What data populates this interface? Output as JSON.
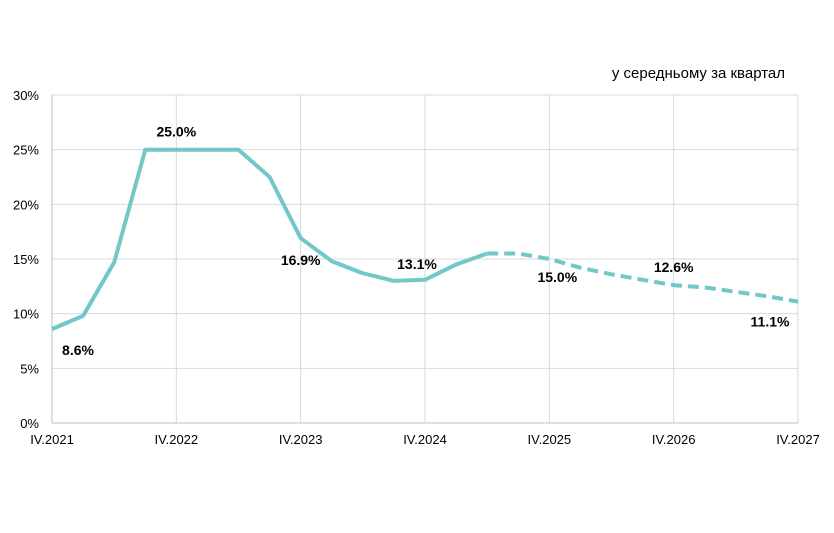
{
  "chart_data": {
    "type": "line",
    "unit_note": "у середньому за квартал",
    "x_tick_labels": [
      "IV.2021",
      "IV.2022",
      "IV.2023",
      "IV.2024",
      "IV.2025",
      "IV.2026",
      "IV.2027"
    ],
    "y_tick_labels": [
      "0%",
      "5%",
      "10%",
      "15%",
      "20%",
      "25%",
      "30%"
    ],
    "ylim": [
      0,
      30
    ],
    "grid": true,
    "color": "#72c7c7",
    "series": [
      {
        "style": "solid",
        "points": [
          {
            "q": "IV.2021",
            "v": 8.6
          },
          {
            "q": "I.2022",
            "v": 9.8
          },
          {
            "q": "II.2022",
            "v": 14.7
          },
          {
            "q": "III.2022",
            "v": 25.0
          },
          {
            "q": "IV.2022",
            "v": 25.0
          },
          {
            "q": "I.2023",
            "v": 25.0
          },
          {
            "q": "II.2023",
            "v": 25.0
          },
          {
            "q": "III.2023",
            "v": 22.5
          },
          {
            "q": "IV.2023",
            "v": 16.9
          },
          {
            "q": "I.2024",
            "v": 14.8
          },
          {
            "q": "II.2024",
            "v": 13.7
          },
          {
            "q": "III.2024",
            "v": 13.0
          },
          {
            "q": "IV.2024",
            "v": 13.1
          },
          {
            "q": "I.2025",
            "v": 14.5
          },
          {
            "q": "II.2025",
            "v": 15.5
          }
        ]
      },
      {
        "style": "dashed",
        "points": [
          {
            "q": "II.2025",
            "v": 15.5
          },
          {
            "q": "III.2025",
            "v": 15.5
          },
          {
            "q": "IV.2025",
            "v": 15.0
          },
          {
            "q": "I.2026",
            "v": 14.2
          },
          {
            "q": "II.2026",
            "v": 13.6
          },
          {
            "q": "III.2026",
            "v": 13.1
          },
          {
            "q": "IV.2026",
            "v": 12.6
          },
          {
            "q": "I.2027",
            "v": 12.4
          },
          {
            "q": "II.2027",
            "v": 12.0
          },
          {
            "q": "III.2027",
            "v": 11.6
          },
          {
            "q": "IV.2027",
            "v": 11.1
          }
        ]
      }
    ],
    "annotations": [
      {
        "q": "IV.2021",
        "v": 8.6,
        "text": "8.6%"
      },
      {
        "q": "IV.2022",
        "v": 25.0,
        "text": "25.0%"
      },
      {
        "q": "IV.2023",
        "v": 16.9,
        "text": "16.9%"
      },
      {
        "q": "IV.2024",
        "v": 13.1,
        "text": "13.1%"
      },
      {
        "q": "IV.2025",
        "v": 15.0,
        "text": "15.0%"
      },
      {
        "q": "IV.2026",
        "v": 12.6,
        "text": "12.6%"
      },
      {
        "q": "IV.2027",
        "v": 11.1,
        "text": "11.1%"
      }
    ]
  }
}
